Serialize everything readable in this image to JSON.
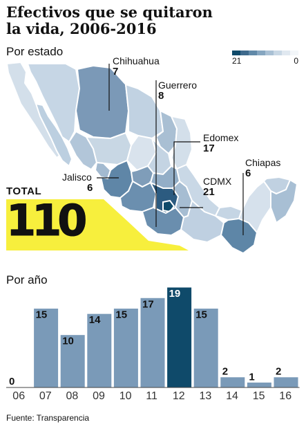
{
  "title": {
    "line1": "Efectivos que se quitaron",
    "line2": "la vida, 2006-2016"
  },
  "map_section": {
    "label": "Por estado",
    "legend": {
      "min": "21",
      "max": "0"
    },
    "colors": [
      "#0f4a6a",
      "#3e6a8c",
      "#6189a8",
      "#86a6c0",
      "#a9c0d4",
      "#c8d7e4",
      "#e0e8f0",
      "#f3f6f9"
    ],
    "callouts": [
      {
        "state": "Chihuahua",
        "value": "7"
      },
      {
        "state": "Guerrero",
        "value": "8"
      },
      {
        "state": "Edomex",
        "value": "17"
      },
      {
        "state": "Jalisco",
        "value": "6"
      },
      {
        "state": "CDMX",
        "value": "21"
      },
      {
        "state": "Chiapas",
        "value": "6"
      }
    ],
    "total": {
      "label": "TOTAL",
      "value": "110",
      "color": "#f7ef3d"
    }
  },
  "bar_section": {
    "label": "Por año"
  },
  "chart_data": {
    "type": "bar",
    "title": "Por año",
    "categories": [
      "06",
      "07",
      "08",
      "09",
      "10",
      "11",
      "12",
      "13",
      "14",
      "15",
      "16"
    ],
    "values": [
      0,
      15,
      10,
      14,
      15,
      17,
      19,
      15,
      2,
      1,
      2
    ],
    "highlight": "12",
    "colors": {
      "bar": "#7a9ab8",
      "highlight": "#0f4a6a"
    }
  },
  "source": "Fuente: Transparencia"
}
